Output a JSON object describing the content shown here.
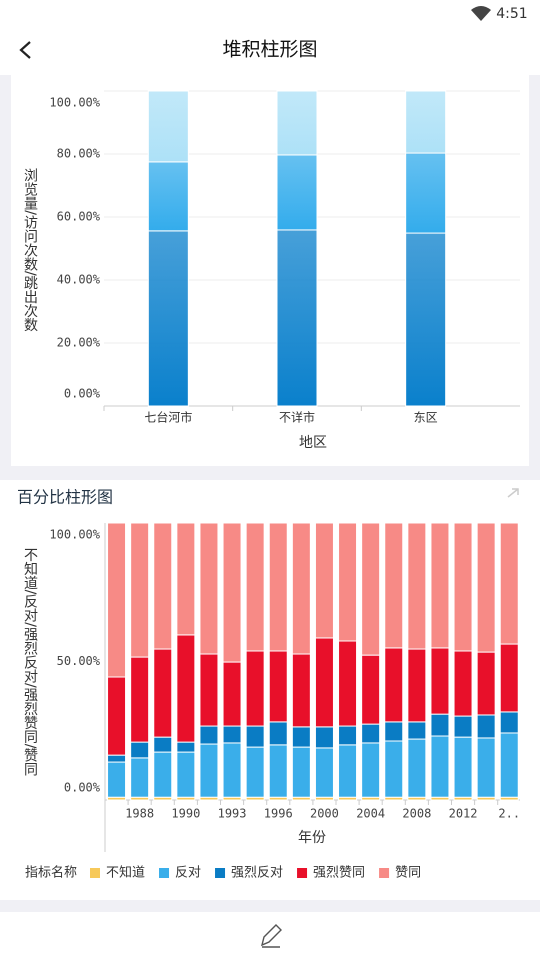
{
  "status_bar": {
    "time": "4:51"
  },
  "header": {
    "title": "堆积柱形图"
  },
  "chart_data": [
    {
      "type": "stacked_bar",
      "y_label": "浏览量/访问次数/跳出次数",
      "x_label": "地区",
      "categories": [
        "七台河市",
        "不详市",
        "东区"
      ],
      "series": [
        {
          "color": "#0a80cc",
          "values": [
            55.6,
            55.9,
            54.9
          ]
        },
        {
          "color": "#33acec",
          "values": [
            21.9,
            23.8,
            25.4
          ]
        },
        {
          "color": "#ade1f7",
          "values": [
            22.5,
            20.3,
            19.7
          ]
        }
      ],
      "ylim": [
        0,
        100
      ],
      "yticks": [
        {
          "value": 0,
          "label": "0.00%"
        },
        {
          "value": 20,
          "label": "20.00%"
        },
        {
          "value": 40,
          "label": "40.00%"
        },
        {
          "value": 60,
          "label": "60.00%"
        },
        {
          "value": 80,
          "label": "80.00%"
        },
        {
          "value": 100,
          "label": "100.00%"
        }
      ],
      "grid": true
    },
    {
      "type": "stacked_bar",
      "title": "百分比柱形图",
      "y_label": "不知道/反对/强烈反对/强烈赞同/赞同",
      "x_label": "年份",
      "legend_title": "指标名称",
      "categories": [
        null,
        "1988",
        null,
        "1990",
        null,
        "1993",
        null,
        "1996",
        null,
        "2000",
        null,
        "2004",
        null,
        "2008",
        null,
        "2012",
        null,
        "2.."
      ],
      "series": [
        {
          "name": "不知道",
          "color": "#f7c95a",
          "values": [
            1,
            1,
            1,
            1,
            1,
            1,
            1,
            1,
            1,
            1,
            1,
            1,
            1,
            1,
            1,
            1,
            1,
            1
          ]
        },
        {
          "name": "反对",
          "color": "#3aaeea",
          "values": [
            12.7,
            14.2,
            16.3,
            16.3,
            19.2,
            19.6,
            18.1,
            18.9,
            18.1,
            17.8,
            18.9,
            19.6,
            20.3,
            21.0,
            22.1,
            21.7,
            21.4,
            23.2
          ]
        },
        {
          "name": "强烈反对",
          "color": "#0a7cc4",
          "values": [
            2.5,
            5.7,
            5.4,
            3.6,
            6.5,
            6.1,
            7.6,
            8.3,
            7.3,
            7.6,
            6.8,
            6.8,
            6.9,
            6.2,
            7.9,
            7.6,
            8.3,
            7.6
          ]
        },
        {
          "name": "强烈赞同",
          "color": "#e8102a",
          "values": [
            28.2,
            30.7,
            31.8,
            38.7,
            26.0,
            23.1,
            27.1,
            25.6,
            26.3,
            32.1,
            30.7,
            24.9,
            26.7,
            26.3,
            23.9,
            23.5,
            22.7,
            24.5
          ]
        },
        {
          "name": "赞同",
          "color": "#f78a86",
          "values": [
            55.6,
            48.4,
            45.5,
            40.4,
            47.3,
            50.2,
            46.2,
            46.2,
            47.3,
            41.5,
            42.6,
            47.7,
            45.1,
            45.5,
            45.1,
            46.2,
            46.6,
            43.7
          ]
        }
      ],
      "ylim": [
        0,
        100
      ],
      "yticks": [
        {
          "value": 0,
          "label": "0.00%"
        },
        {
          "value": 50,
          "label": "50.00%"
        },
        {
          "value": 100,
          "label": "100.00%"
        }
      ],
      "grid": false
    }
  ]
}
